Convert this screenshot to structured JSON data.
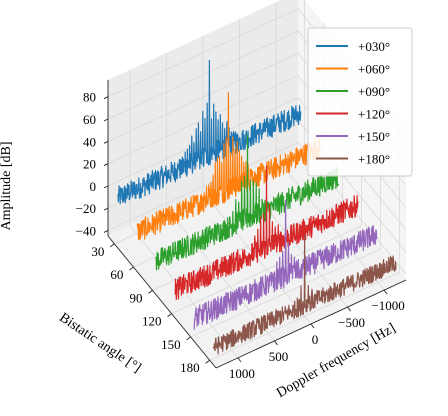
{
  "chart_data": {
    "type": "line",
    "projection": "3d",
    "title": "",
    "xlabel": "Doppler frequency [Hz]",
    "ylabel": "Bistatic angle [°]",
    "zlabel": "Amplitude [dB]",
    "xlim": [
      1300,
      -1300
    ],
    "ylim": [
      20,
      190
    ],
    "zlim": [
      -45,
      95
    ],
    "x_ticks": [
      1000,
      500,
      0,
      -500,
      -1000
    ],
    "x_tick_labels": [
      "1000",
      "500",
      "0",
      "−500",
      "−1000"
    ],
    "y_ticks": [
      30,
      60,
      90,
      120,
      150,
      180
    ],
    "y_tick_labels": [
      "30",
      "60",
      "90",
      "120",
      "150",
      "180"
    ],
    "z_ticks": [
      -40,
      -20,
      0,
      20,
      40,
      60,
      80
    ],
    "z_tick_labels": [
      "−40",
      "−20",
      "0",
      "20",
      "40",
      "60",
      "80"
    ],
    "grid": true,
    "legend_position": "top-right",
    "series": [
      {
        "name": "+030°",
        "bistatic_angle": 30,
        "color": "#1f77b4",
        "noise_floor_db": -5,
        "noise_spread_db": 10,
        "peak_freq_hz": 0,
        "peak_db": 80,
        "comb_spacing_hz": 30,
        "comb_extent_hz": 450,
        "comb_peak_db": 50
      },
      {
        "name": "+060°",
        "bistatic_angle": 60,
        "color": "#ff7f0e",
        "noise_floor_db": -15,
        "noise_spread_db": 10,
        "peak_freq_hz": 0,
        "peak_db": 72,
        "comb_spacing_hz": 30,
        "comb_extent_hz": 400,
        "comb_peak_db": 42
      },
      {
        "name": "+090°",
        "bistatic_angle": 90,
        "color": "#2ca02c",
        "noise_floor_db": -20,
        "noise_spread_db": 10,
        "peak_freq_hz": 0,
        "peak_db": 55,
        "comb_spacing_hz": 40,
        "comb_extent_hz": 300,
        "comb_peak_db": 30
      },
      {
        "name": "+120°",
        "bistatic_angle": 120,
        "color": "#d62728",
        "noise_floor_db": -25,
        "noise_spread_db": 10,
        "peak_freq_hz": 0,
        "peak_db": 48,
        "comb_spacing_hz": 40,
        "comb_extent_hz": 250,
        "comb_peak_db": 22
      },
      {
        "name": "+150°",
        "bistatic_angle": 150,
        "color": "#9467bd",
        "noise_floor_db": -30,
        "noise_spread_db": 10,
        "peak_freq_hz": 0,
        "peak_db": 38,
        "comb_spacing_hz": 40,
        "comb_extent_hz": 200,
        "comb_peak_db": 15
      },
      {
        "name": "+180°",
        "bistatic_angle": 180,
        "color": "#8c564b",
        "noise_floor_db": -35,
        "noise_spread_db": 8,
        "peak_freq_hz": 0,
        "peak_db": 28,
        "comb_spacing_hz": 50,
        "comb_extent_hz": 150,
        "comb_peak_db": 5
      }
    ]
  }
}
